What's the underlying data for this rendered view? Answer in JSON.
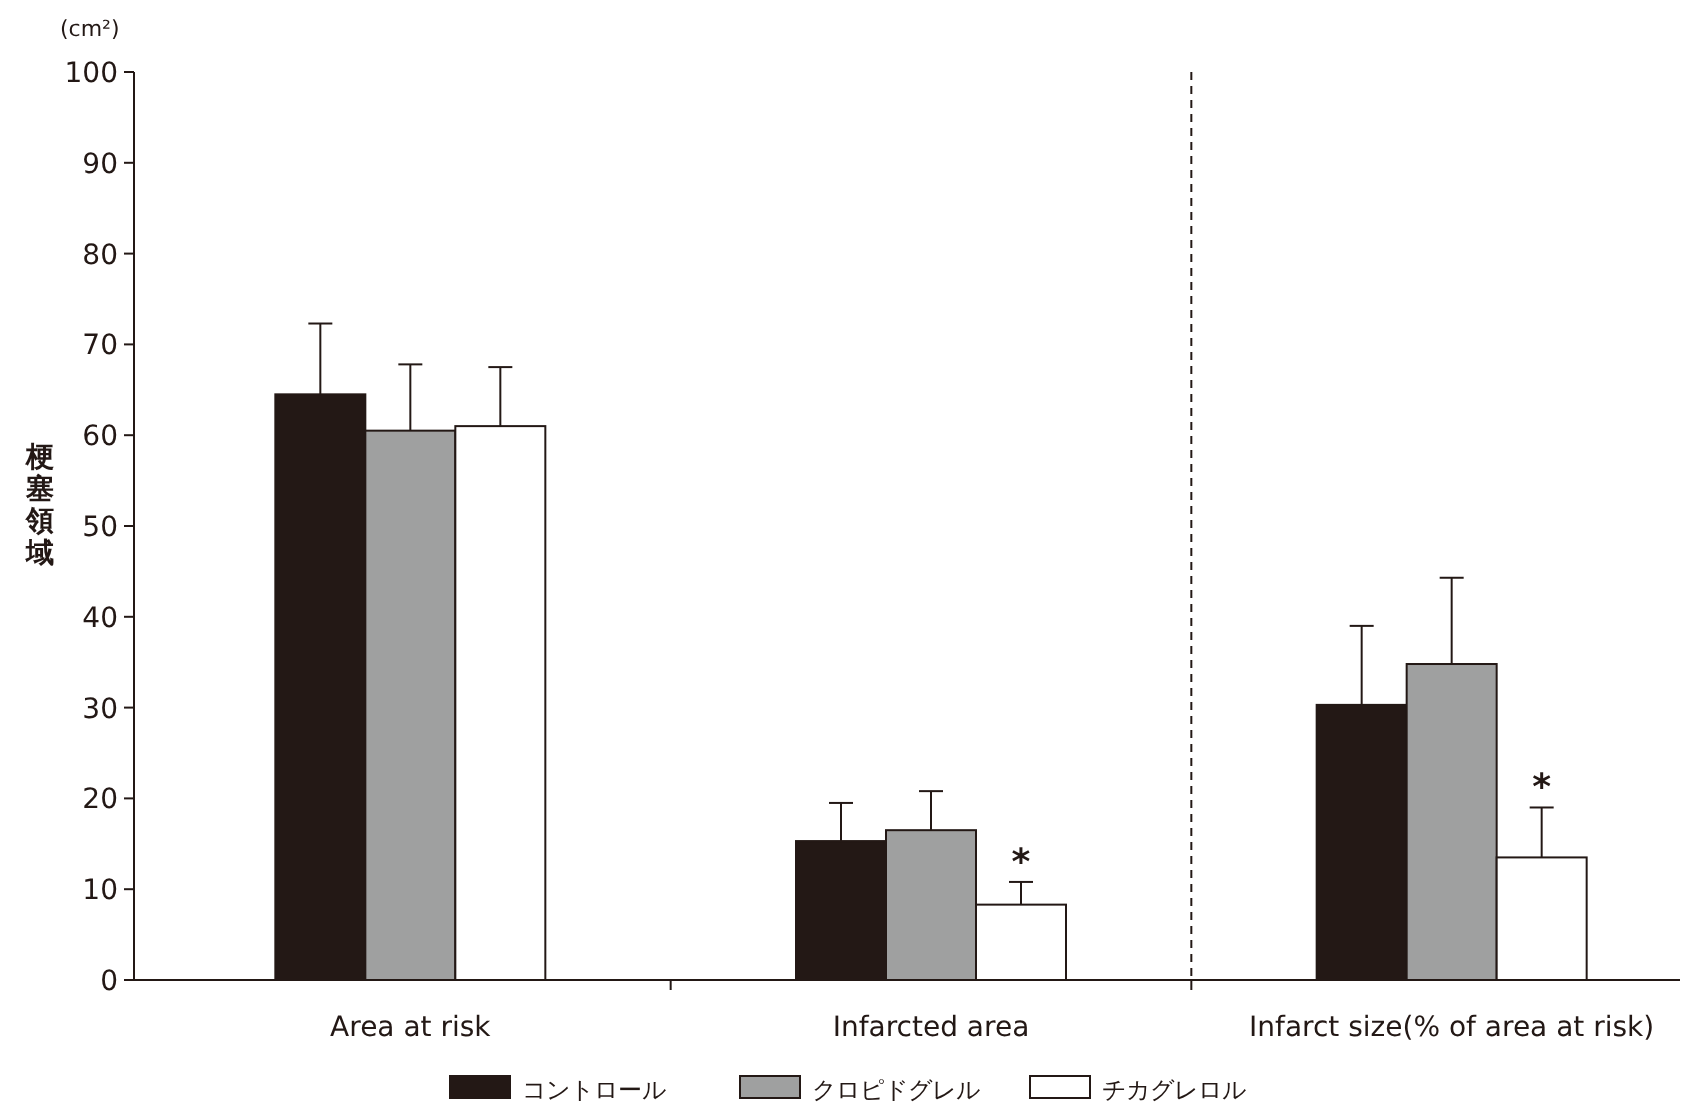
{
  "chart_data": {
    "type": "bar",
    "ylabel": "梗塞領域",
    "categories": [
      "Area at risk",
      "Infarcted area",
      "Infarct size(% of area at risk)"
    ],
    "series": [
      {
        "name": "コントロール",
        "color": "#231815",
        "values": [
          64.5,
          15.3,
          30.3
        ],
        "errors": [
          [
            64.5,
            72.3
          ],
          [
            15.3,
            19.5
          ],
          [
            30.3,
            39
          ]
        ]
      },
      {
        "name": "クロピドグレル",
        "color": "#9fa0a0",
        "values": [
          60.5,
          16.5,
          34.8
        ],
        "errors": [
          [
            60.5,
            67.8
          ],
          [
            16.5,
            20.8
          ],
          [
            34.8,
            44.3
          ]
        ]
      },
      {
        "name": "チカグレロル",
        "color": "#ffffff",
        "values": [
          61,
          8.3,
          13.5
        ],
        "errors": [
          [
            61,
            67.5
          ],
          [
            8.3,
            10.8
          ],
          [
            13.5,
            19
          ]
        ]
      }
    ],
    "ylim": [
      0,
      100
    ],
    "yticks": [
      0,
      10,
      20,
      30,
      40,
      50,
      60,
      70,
      80,
      90,
      100
    ],
    "annotations": [
      "(cm²)",
      "*",
      "*"
    ],
    "legend": "bottom",
    "grid": false
  }
}
